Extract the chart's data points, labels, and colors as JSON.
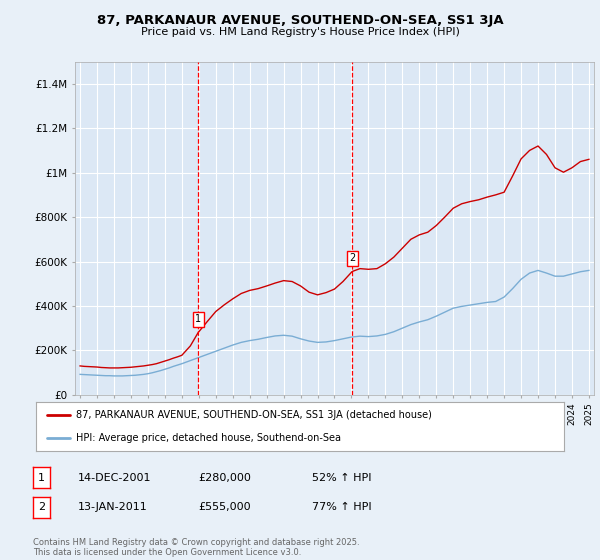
{
  "title": "87, PARKANAUR AVENUE, SOUTHEND-ON-SEA, SS1 3JA",
  "subtitle": "Price paid vs. HM Land Registry's House Price Index (HPI)",
  "background_color": "#e8f0f8",
  "plot_bg_color": "#dce8f5",
  "grid_color": "#ffffff",
  "ylim": [
    0,
    1500000
  ],
  "yticks": [
    0,
    200000,
    400000,
    600000,
    800000,
    1000000,
    1200000,
    1400000
  ],
  "ytick_labels": [
    "£0",
    "£200K",
    "£400K",
    "£600K",
    "£800K",
    "£1M",
    "£1.2M",
    "£1.4M"
  ],
  "xstart_year": 1995,
  "xend_year": 2025,
  "marker1": {
    "x": 2001.96,
    "label": "1",
    "date": "14-DEC-2001",
    "price": "£280,000",
    "pct": "52% ↑ HPI"
  },
  "marker2": {
    "x": 2011.04,
    "label": "2",
    "date": "13-JAN-2011",
    "price": "£555,000",
    "pct": "77% ↑ HPI"
  },
  "line_color_red": "#cc0000",
  "line_color_blue": "#7aadd4",
  "legend_label_red": "87, PARKANAUR AVENUE, SOUTHEND-ON-SEA, SS1 3JA (detached house)",
  "legend_label_blue": "HPI: Average price, detached house, Southend-on-Sea",
  "footnote": "Contains HM Land Registry data © Crown copyright and database right 2025.\nThis data is licensed under the Open Government Licence v3.0.",
  "red_x": [
    1995.0,
    1995.25,
    1995.5,
    1995.75,
    1996.0,
    1996.25,
    1996.5,
    1996.75,
    1997.0,
    1997.25,
    1997.5,
    1997.75,
    1998.0,
    1998.25,
    1998.5,
    1998.75,
    1999.0,
    1999.25,
    1999.5,
    1999.75,
    2000.0,
    2000.25,
    2000.5,
    2000.75,
    2001.0,
    2001.5,
    2001.96,
    2002.5,
    2003.0,
    2003.5,
    2004.0,
    2004.5,
    2005.0,
    2005.5,
    2006.0,
    2006.5,
    2007.0,
    2007.5,
    2008.0,
    2008.5,
    2009.0,
    2009.5,
    2010.0,
    2010.5,
    2011.04,
    2011.5,
    2012.0,
    2012.5,
    2013.0,
    2013.5,
    2014.0,
    2014.5,
    2015.0,
    2015.5,
    2016.0,
    2016.5,
    2017.0,
    2017.5,
    2018.0,
    2018.5,
    2019.0,
    2019.5,
    2020.0,
    2020.5,
    2021.0,
    2021.5,
    2022.0,
    2022.5,
    2023.0,
    2023.5,
    2024.0,
    2024.5,
    2025.0
  ],
  "red_y": [
    130000,
    128000,
    127000,
    126000,
    125000,
    123000,
    122000,
    121000,
    121000,
    121000,
    122000,
    123000,
    124000,
    126000,
    128000,
    130000,
    133000,
    136000,
    140000,
    146000,
    152000,
    158000,
    165000,
    171000,
    178000,
    220000,
    280000,
    330000,
    375000,
    405000,
    432000,
    456000,
    470000,
    478000,
    490000,
    503000,
    514000,
    510000,
    490000,
    462000,
    450000,
    460000,
    476000,
    510000,
    555000,
    568000,
    565000,
    568000,
    590000,
    620000,
    660000,
    700000,
    720000,
    732000,
    762000,
    800000,
    840000,
    860000,
    870000,
    878000,
    890000,
    900000,
    912000,
    985000,
    1062000,
    1100000,
    1120000,
    1082000,
    1022000,
    1002000,
    1022000,
    1050000,
    1060000
  ],
  "blue_x": [
    1995.0,
    1995.25,
    1995.5,
    1995.75,
    1996.0,
    1996.25,
    1996.5,
    1996.75,
    1997.0,
    1997.25,
    1997.5,
    1997.75,
    1998.0,
    1998.25,
    1998.5,
    1998.75,
    1999.0,
    1999.25,
    1999.5,
    1999.75,
    2000.0,
    2000.25,
    2000.5,
    2000.75,
    2001.0,
    2001.5,
    2002.0,
    2002.5,
    2003.0,
    2003.5,
    2004.0,
    2004.5,
    2005.0,
    2005.5,
    2006.0,
    2006.5,
    2007.0,
    2007.5,
    2008.0,
    2008.5,
    2009.0,
    2009.5,
    2010.0,
    2010.5,
    2011.0,
    2011.5,
    2012.0,
    2012.5,
    2013.0,
    2013.5,
    2014.0,
    2014.5,
    2015.0,
    2015.5,
    2016.0,
    2016.5,
    2017.0,
    2017.5,
    2018.0,
    2018.5,
    2019.0,
    2019.5,
    2020.0,
    2020.5,
    2021.0,
    2021.5,
    2022.0,
    2022.5,
    2023.0,
    2023.5,
    2024.0,
    2024.5,
    2025.0
  ],
  "blue_y": [
    92000,
    91000,
    90000,
    89000,
    88000,
    87000,
    86000,
    86000,
    85000,
    85000,
    85000,
    86000,
    87000,
    88000,
    90000,
    92000,
    95000,
    99000,
    104000,
    109000,
    115000,
    121000,
    128000,
    134000,
    140000,
    154000,
    168000,
    182000,
    196000,
    210000,
    224000,
    236000,
    244000,
    250000,
    258000,
    265000,
    268000,
    264000,
    252000,
    242000,
    236000,
    238000,
    244000,
    252000,
    260000,
    264000,
    262000,
    265000,
    272000,
    284000,
    300000,
    316000,
    328000,
    338000,
    354000,
    372000,
    390000,
    398000,
    404000,
    410000,
    416000,
    420000,
    440000,
    478000,
    520000,
    548000,
    560000,
    548000,
    534000,
    534000,
    544000,
    554000,
    560000
  ]
}
